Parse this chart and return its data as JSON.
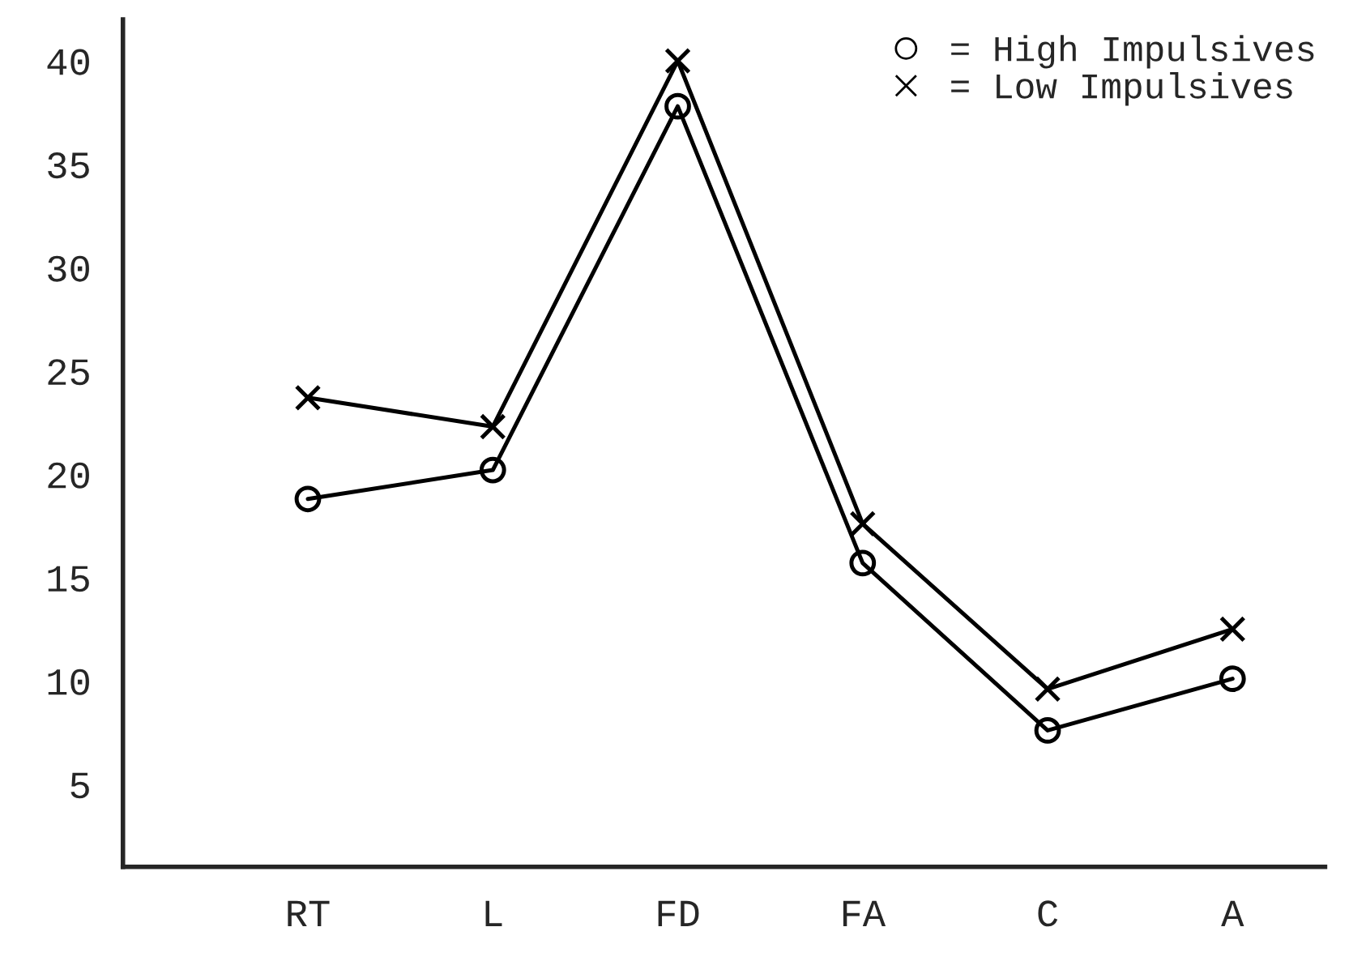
{
  "chart_data": {
    "type": "line",
    "categories": [
      "RT",
      "L",
      "FD",
      "FA",
      "C",
      "A"
    ],
    "series": [
      {
        "name": "= High Impulsives",
        "color": "#000000",
        "marker": "circle",
        "values": [
          18.8,
          20.2,
          37.8,
          15.7,
          7.6,
          10.1
        ]
      },
      {
        "name": "= Low Impulsives",
        "color": "#000000",
        "marker": "cross",
        "values": [
          23.7,
          22.3,
          40,
          17.6,
          9.6,
          12.5
        ]
      }
    ],
    "ylim": [
      1,
      42
    ],
    "yticks": [
      5,
      10,
      15,
      20,
      25,
      30,
      35,
      40
    ],
    "grid": false,
    "legend": "top right",
    "line_style": "solid"
  }
}
